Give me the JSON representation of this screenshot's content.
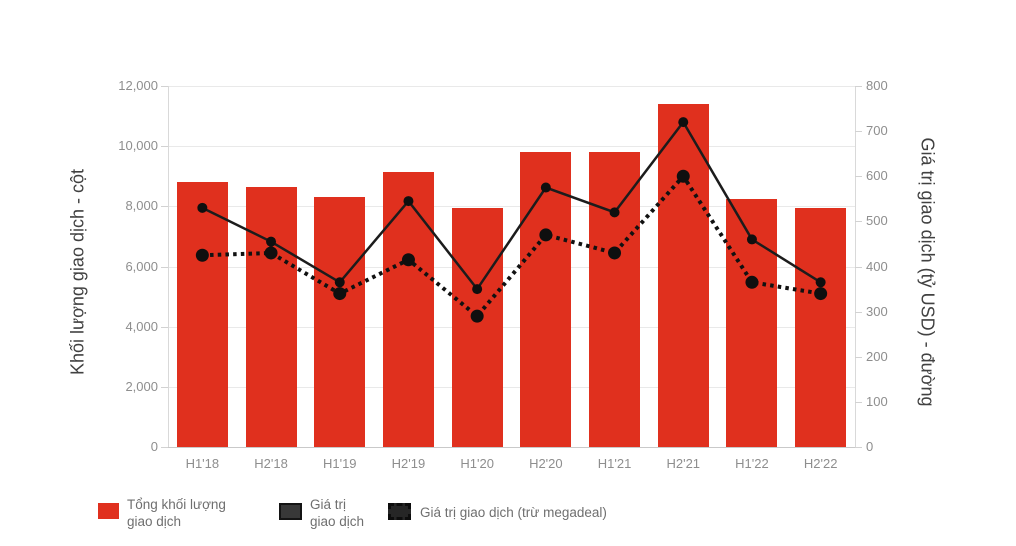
{
  "chart_data": {
    "type": "combo",
    "categories": [
      "H1'18",
      "H2'18",
      "H1'19",
      "H2'19",
      "H1'20",
      "H2'20",
      "H1'21",
      "H2'21",
      "H1'22",
      "H2'22"
    ],
    "series": [
      {
        "name": "Tổng khối lượng giao dịch",
        "type": "bar",
        "axis": "left",
        "color": "#e0301e",
        "values": [
          8800,
          8650,
          8300,
          9150,
          7950,
          9800,
          9800,
          11400,
          8250,
          7950
        ]
      },
      {
        "name": "Giá trị giao dịch",
        "type": "line",
        "line_style": "solid",
        "axis": "right",
        "color": "#1c1c1c",
        "values": [
          530,
          455,
          365,
          545,
          350,
          575,
          520,
          720,
          460,
          365
        ]
      },
      {
        "name": "Giá trị giao dịch (trừ megadeal)",
        "type": "line",
        "line_style": "dotted",
        "axis": "right",
        "color": "#111111",
        "values": [
          425,
          430,
          340,
          415,
          290,
          470,
          430,
          600,
          365,
          340
        ]
      }
    ],
    "left_axis": {
      "title": "Khối lượng giao dịch - cột",
      "min": 0,
      "max": 12000,
      "step": 2000,
      "tick_labels": [
        "0",
        "2,000",
        "4,000",
        "6,000",
        "8,000",
        "10,000",
        "12,000"
      ]
    },
    "right_axis": {
      "title": "Giá trị giao dịch (tỷ USD) - đường",
      "min": 0,
      "max": 800,
      "step": 100,
      "tick_labels": [
        "0",
        "100",
        "200",
        "300",
        "400",
        "500",
        "600",
        "700",
        "800"
      ]
    },
    "grid": "horizontal-on",
    "legend": {
      "position": "bottom",
      "items": [
        {
          "label": "Tổng khối lượng giao dịch",
          "lines": [
            "Tổng khối lượng",
            "giao dịch"
          ],
          "swatch": "red-square"
        },
        {
          "label": "Giá trị giao dịch",
          "lines": [
            "Giá trị",
            "giao dịch"
          ],
          "swatch": "dark-square"
        },
        {
          "label": "Giá trị giao dịch (trừ megadeal)",
          "lines": [
            "Giá trị giao dịch (trừ megadeal)"
          ],
          "swatch": "dashed-square"
        }
      ]
    }
  }
}
